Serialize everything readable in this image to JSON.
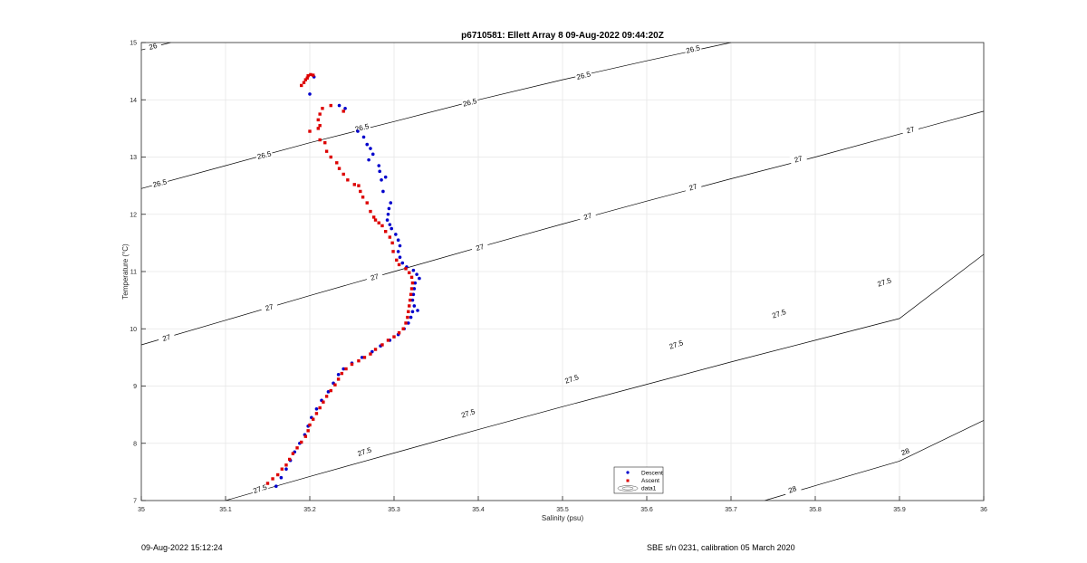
{
  "chart_data": {
    "type": "scatter",
    "title": "p6710581: Ellett Array 8 09-Aug-2022 09:44:20Z",
    "xlabel": "Salinity (psu)",
    "ylabel": "Temperature (°C)",
    "xlim": [
      35,
      36
    ],
    "ylim": [
      7,
      15
    ],
    "xticks": [
      "35",
      "35.1",
      "35.2",
      "35.3",
      "35.4",
      "35.5",
      "35.6",
      "35.7",
      "35.8",
      "35.9",
      "36"
    ],
    "yticks": [
      "7",
      "8",
      "9",
      "10",
      "11",
      "12",
      "13",
      "14",
      "15"
    ],
    "grid": true,
    "legend": {
      "placement": "bottom-center",
      "entries": [
        "Descent",
        "Ascent",
        "data1"
      ]
    },
    "colors": {
      "descent": "#0000cc",
      "ascent": "#dd0000",
      "contour": "#000000",
      "grid": "#e6e6e6"
    },
    "contours": [
      {
        "level": "26",
        "points": [
          [
            35.0,
            14.87
          ],
          [
            35.035,
            15.0
          ]
        ],
        "labels": [
          [
            35.014,
            14.93,
            "26"
          ]
        ]
      },
      {
        "level": "26.5",
        "points": [
          [
            35.0,
            12.45
          ],
          [
            35.1,
            12.85
          ],
          [
            35.2,
            13.25
          ],
          [
            35.3,
            13.62
          ],
          [
            35.4,
            14.0
          ],
          [
            35.5,
            14.35
          ],
          [
            35.6,
            14.68
          ],
          [
            35.7,
            15.0
          ]
        ],
        "labels": [
          [
            35.022,
            12.54,
            "26.5"
          ],
          [
            35.146,
            13.03,
            "26.5"
          ],
          [
            35.262,
            13.51,
            "26.5"
          ],
          [
            35.39,
            13.95,
            "26.5"
          ],
          [
            35.525,
            14.42,
            "26.5"
          ],
          [
            35.655,
            14.88,
            "26.5"
          ]
        ]
      },
      {
        "level": "27",
        "points": [
          [
            35.0,
            9.72
          ],
          [
            35.1,
            10.15
          ],
          [
            35.2,
            10.58
          ],
          [
            35.3,
            11.0
          ],
          [
            35.4,
            11.42
          ],
          [
            35.5,
            11.83
          ],
          [
            35.6,
            12.23
          ],
          [
            35.7,
            12.62
          ],
          [
            35.8,
            13.0
          ],
          [
            35.9,
            13.4
          ],
          [
            36.0,
            13.8
          ]
        ],
        "labels": [
          [
            35.03,
            9.84,
            "27"
          ],
          [
            35.152,
            10.37,
            "27"
          ],
          [
            35.277,
            10.9,
            "27"
          ],
          [
            35.402,
            11.42,
            "27"
          ],
          [
            35.53,
            11.96,
            "27"
          ],
          [
            35.655,
            12.47,
            "27"
          ],
          [
            35.78,
            12.96,
            "27"
          ],
          [
            35.913,
            13.47,
            "27"
          ]
        ]
      },
      {
        "level": "27.5",
        "points": [
          [
            35.1,
            7.0
          ],
          [
            35.2,
            7.42
          ],
          [
            35.3,
            7.83
          ],
          [
            35.4,
            8.24
          ],
          [
            35.5,
            8.64
          ],
          [
            35.6,
            9.03
          ],
          [
            35.7,
            9.42
          ],
          [
            35.8,
            9.8
          ],
          [
            35.9,
            10.18
          ],
          [
            36.0,
            11.3
          ]
        ],
        "labels": [
          [
            35.141,
            7.2,
            "27.5"
          ],
          [
            35.265,
            7.85,
            "27.5"
          ],
          [
            35.388,
            8.52,
            "27.5"
          ],
          [
            35.511,
            9.12,
            "27.5"
          ],
          [
            35.635,
            9.72,
            "27.5"
          ],
          [
            35.757,
            10.26,
            "27.5"
          ],
          [
            35.882,
            10.81,
            "27.5"
          ]
        ]
      },
      {
        "level": "28",
        "points": [
          [
            35.74,
            7.0
          ],
          [
            35.8,
            7.26
          ],
          [
            35.9,
            7.69
          ],
          [
            36.0,
            8.4
          ]
        ],
        "labels": [
          [
            35.773,
            7.19,
            "28"
          ],
          [
            35.907,
            7.85,
            "28"
          ]
        ]
      }
    ],
    "series": [
      {
        "name": "Descent",
        "marker": "circle",
        "color": "#0000cc",
        "points": [
          [
            35.16,
            7.25
          ],
          [
            35.166,
            7.4
          ],
          [
            35.172,
            7.55
          ],
          [
            35.177,
            7.7
          ],
          [
            35.182,
            7.85
          ],
          [
            35.188,
            8.0
          ],
          [
            35.194,
            8.15
          ],
          [
            35.198,
            8.3
          ],
          [
            35.202,
            8.45
          ],
          [
            35.208,
            8.6
          ],
          [
            35.214,
            8.75
          ],
          [
            35.222,
            8.9
          ],
          [
            35.228,
            9.05
          ],
          [
            35.234,
            9.2
          ],
          [
            35.24,
            9.3
          ],
          [
            35.25,
            9.4
          ],
          [
            35.262,
            9.5
          ],
          [
            35.274,
            9.6
          ],
          [
            35.284,
            9.7
          ],
          [
            35.295,
            9.8
          ],
          [
            35.305,
            9.9
          ],
          [
            35.312,
            10.0
          ],
          [
            35.317,
            10.1
          ],
          [
            35.32,
            10.2
          ],
          [
            35.322,
            10.3
          ],
          [
            35.328,
            10.32
          ],
          [
            35.324,
            10.4
          ],
          [
            35.322,
            10.5
          ],
          [
            35.323,
            10.6
          ],
          [
            35.324,
            10.7
          ],
          [
            35.325,
            10.8
          ],
          [
            35.33,
            10.88
          ],
          [
            35.327,
            10.95
          ],
          [
            35.323,
            11.02
          ],
          [
            35.315,
            11.08
          ],
          [
            35.31,
            11.15
          ],
          [
            35.307,
            11.25
          ],
          [
            35.305,
            11.35
          ],
          [
            35.307,
            11.45
          ],
          [
            35.305,
            11.55
          ],
          [
            35.302,
            11.65
          ],
          [
            35.297,
            11.75
          ],
          [
            35.295,
            11.82
          ],
          [
            35.292,
            11.9
          ],
          [
            35.293,
            12.0
          ],
          [
            35.294,
            12.1
          ],
          [
            35.296,
            12.2
          ],
          [
            35.287,
            12.4
          ],
          [
            35.285,
            12.6
          ],
          [
            35.29,
            12.65
          ],
          [
            35.283,
            12.75
          ],
          [
            35.282,
            12.85
          ],
          [
            35.27,
            12.95
          ],
          [
            35.275,
            13.05
          ],
          [
            35.272,
            13.15
          ],
          [
            35.268,
            13.22
          ],
          [
            35.264,
            13.35
          ],
          [
            35.257,
            13.45
          ],
          [
            35.242,
            13.85
          ],
          [
            35.235,
            13.9
          ],
          [
            35.2,
            14.1
          ],
          [
            35.205,
            14.4
          ]
        ]
      },
      {
        "name": "Ascent",
        "marker": "square",
        "color": "#dd0000",
        "points": [
          [
            35.15,
            7.3
          ],
          [
            35.156,
            7.38
          ],
          [
            35.162,
            7.45
          ],
          [
            35.167,
            7.55
          ],
          [
            35.172,
            7.62
          ],
          [
            35.176,
            7.72
          ],
          [
            35.18,
            7.82
          ],
          [
            35.185,
            7.92
          ],
          [
            35.19,
            8.02
          ],
          [
            35.195,
            8.12
          ],
          [
            35.198,
            8.22
          ],
          [
            35.2,
            8.32
          ],
          [
            35.204,
            8.42
          ],
          [
            35.208,
            8.52
          ],
          [
            35.212,
            8.62
          ],
          [
            35.216,
            8.72
          ],
          [
            35.22,
            8.82
          ],
          [
            35.225,
            8.92
          ],
          [
            35.23,
            9.02
          ],
          [
            35.234,
            9.12
          ],
          [
            35.238,
            9.22
          ],
          [
            35.243,
            9.3
          ],
          [
            35.25,
            9.38
          ],
          [
            35.258,
            9.44
          ],
          [
            35.265,
            9.5
          ],
          [
            35.272,
            9.56
          ],
          [
            35.278,
            9.64
          ],
          [
            35.286,
            9.72
          ],
          [
            35.293,
            9.8
          ],
          [
            35.3,
            9.86
          ],
          [
            35.306,
            9.93
          ],
          [
            35.311,
            10.0
          ],
          [
            35.314,
            10.1
          ],
          [
            35.316,
            10.2
          ],
          [
            35.317,
            10.3
          ],
          [
            35.318,
            10.4
          ],
          [
            35.319,
            10.5
          ],
          [
            35.32,
            10.6
          ],
          [
            35.321,
            10.7
          ],
          [
            35.322,
            10.8
          ],
          [
            35.321,
            10.9
          ],
          [
            35.318,
            10.98
          ],
          [
            35.314,
            11.05
          ],
          [
            35.306,
            11.12
          ],
          [
            35.303,
            11.2
          ],
          [
            35.299,
            11.35
          ],
          [
            35.298,
            11.5
          ],
          [
            35.295,
            11.6
          ],
          [
            35.29,
            11.7
          ],
          [
            35.286,
            11.8
          ],
          [
            35.282,
            11.85
          ],
          [
            35.278,
            11.9
          ],
          [
            35.276,
            11.95
          ],
          [
            35.272,
            12.05
          ],
          [
            35.268,
            12.2
          ],
          [
            35.263,
            12.3
          ],
          [
            35.26,
            12.4
          ],
          [
            35.258,
            12.5
          ],
          [
            35.253,
            12.52
          ],
          [
            35.245,
            12.6
          ],
          [
            35.24,
            12.7
          ],
          [
            35.235,
            12.8
          ],
          [
            35.232,
            12.9
          ],
          [
            35.225,
            13.0
          ],
          [
            35.22,
            13.1
          ],
          [
            35.218,
            13.25
          ],
          [
            35.212,
            13.3
          ],
          [
            35.2,
            13.45
          ],
          [
            35.21,
            13.5
          ],
          [
            35.212,
            13.55
          ],
          [
            35.21,
            13.65
          ],
          [
            35.212,
            13.75
          ],
          [
            35.215,
            13.85
          ],
          [
            35.225,
            13.9
          ],
          [
            35.24,
            13.8
          ],
          [
            35.19,
            14.25
          ],
          [
            35.193,
            14.3
          ],
          [
            35.197,
            14.38
          ],
          [
            35.198,
            14.42
          ],
          [
            35.201,
            14.44
          ],
          [
            35.204,
            14.43
          ],
          [
            35.195,
            14.35
          ]
        ]
      }
    ]
  },
  "footer": {
    "left": "09-Aug-2022 15:12:24",
    "right": "SBE s/n 0231, calibration 05 March 2020"
  }
}
